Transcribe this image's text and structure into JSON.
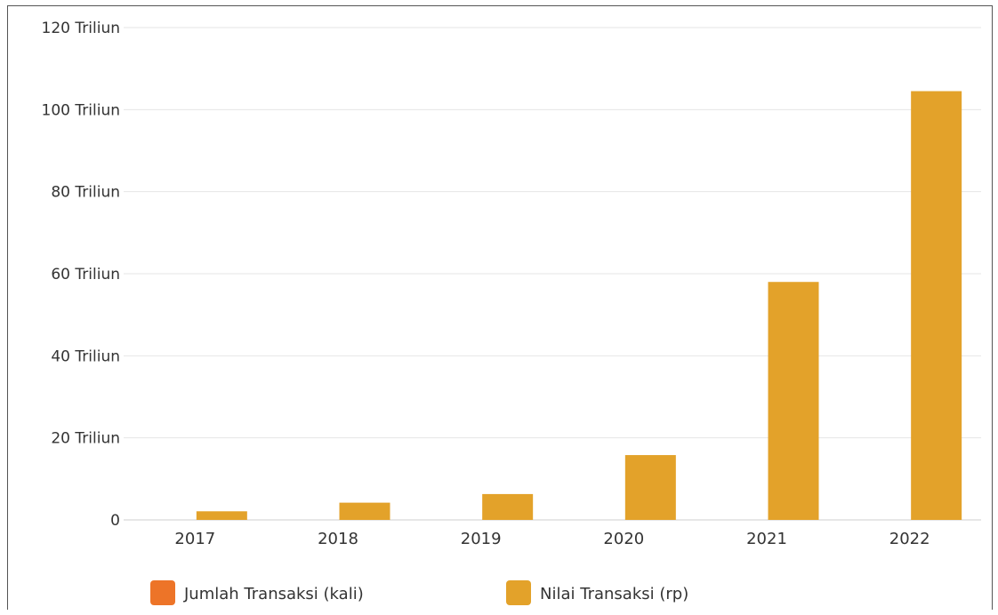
{
  "chart_data": {
    "type": "bar",
    "categories": [
      "2017",
      "2018",
      "2019",
      "2020",
      "2021",
      "2022"
    ],
    "series": [
      {
        "name": "Jumlah Transaksi (kali)",
        "color": "#ED7428",
        "values": [
          0,
          0,
          0,
          0,
          0,
          0
        ]
      },
      {
        "name": "Nilai Transaksi (rp)",
        "color": "#E3A22A",
        "values": [
          2.1,
          4.2,
          6.3,
          15.8,
          58,
          104.5
        ]
      }
    ],
    "y_ticks": [
      "0",
      "20 Triliun",
      "40 Triliun",
      "60 Triliun",
      "80 Triliun",
      "100 Triliun",
      "120 Triliun"
    ],
    "ylim": [
      0,
      120
    ],
    "grid": true,
    "legend_position": "bottom"
  }
}
